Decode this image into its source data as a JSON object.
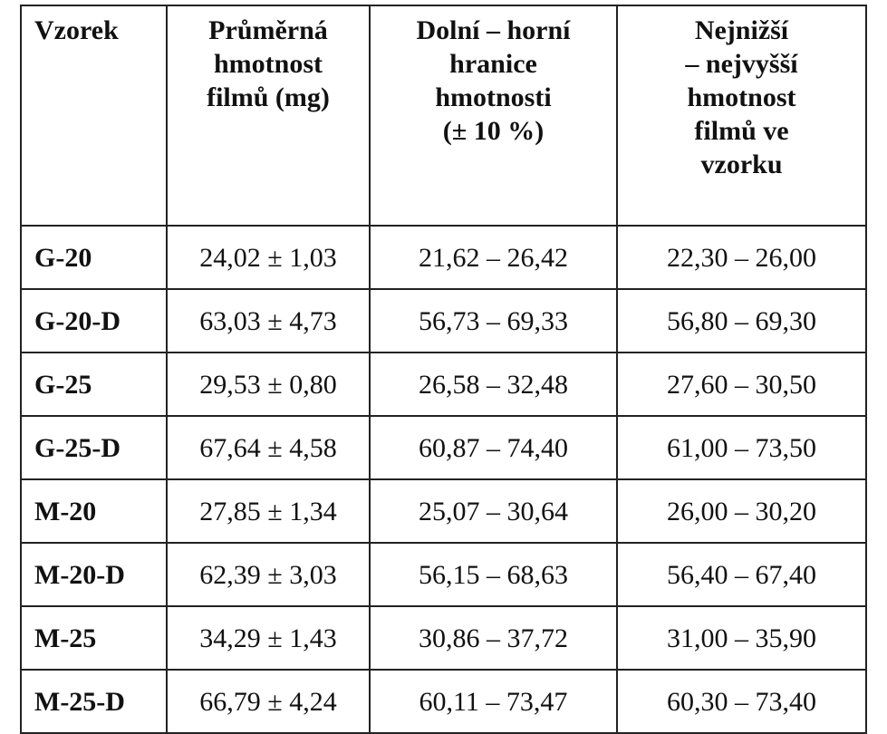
{
  "table": {
    "header": [
      [
        "Vzorek"
      ],
      [
        "Průměrná",
        "hmotnost",
        "filmů (mg)"
      ],
      [
        "Dolní – horní",
        "hranice",
        "hmotnosti",
        "(± 10 %)"
      ],
      [
        "Nejnižší",
        "– nejvyšší",
        "hmotnost",
        "filmů ve",
        "vzorku"
      ]
    ],
    "rows": [
      [
        "G-20",
        "24,02 ± 1,03",
        "21,62 – 26,42",
        "22,30 – 26,00"
      ],
      [
        "G-20-D",
        "63,03 ± 4,73",
        "56,73 – 69,33",
        "56,80 – 69,30"
      ],
      [
        "G-25",
        "29,53 ± 0,80",
        "26,58 – 32,48",
        "27,60 – 30,50"
      ],
      [
        "G-25-D",
        "67,64 ± 4,58",
        "60,87 – 74,40",
        "61,00 – 73,50"
      ],
      [
        "M-20",
        "27,85 ± 1,34",
        "25,07 – 30,64",
        "26,00 – 30,20"
      ],
      [
        "M-20-D",
        "62,39 ± 3,03",
        "56,15 – 68,63",
        "56,40 – 67,40"
      ],
      [
        "M-25",
        "34,29 ± 1,43",
        "30,86 – 37,72",
        "31,00 – 35,90"
      ],
      [
        "M-25-D",
        "66,79 ± 4,24",
        "60,11 – 73,47",
        "60,30 – 73,40"
      ]
    ]
  }
}
